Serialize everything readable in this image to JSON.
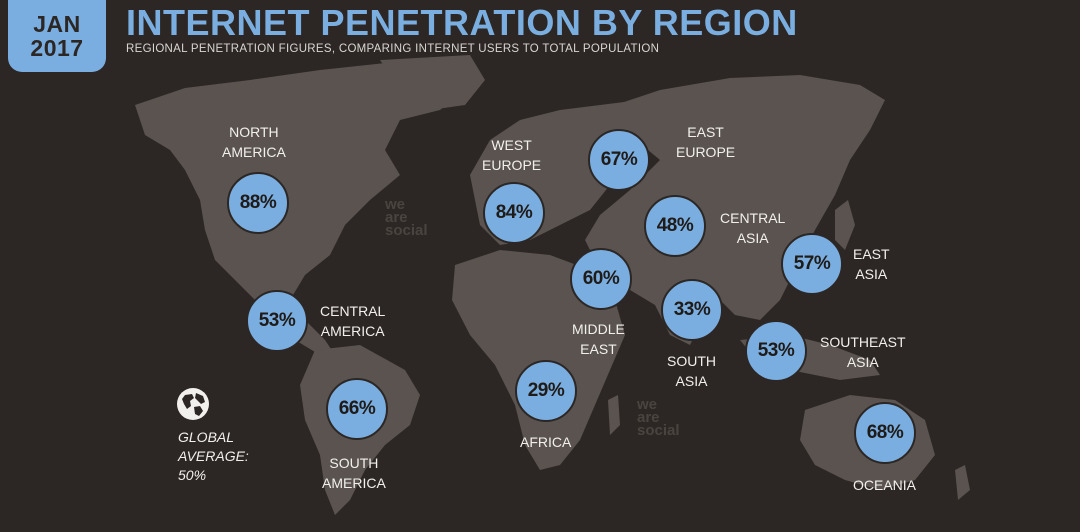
{
  "header": {
    "badge_month": "JAN",
    "badge_year": "2017",
    "title": "INTERNET PENETRATION BY REGION",
    "subtitle": "REGIONAL PENETRATION FIGURES, COMPARING INTERNET USERS TO TOTAL POPULATION"
  },
  "colors": {
    "background": "#2c2724",
    "land": "#5a534f",
    "accent": "#7aaee0"
  },
  "regions": [
    {
      "id": "north-america",
      "label": [
        "NORTH",
        "AMERICA"
      ],
      "value": "88%"
    },
    {
      "id": "central-america",
      "label": [
        "CENTRAL",
        "AMERICA"
      ],
      "value": "53%"
    },
    {
      "id": "south-america",
      "label": [
        "SOUTH",
        "AMERICA"
      ],
      "value": "66%"
    },
    {
      "id": "west-europe",
      "label": [
        "WEST",
        "EUROPE"
      ],
      "value": "84%"
    },
    {
      "id": "east-europe",
      "label": [
        "EAST",
        "EUROPE"
      ],
      "value": "67%"
    },
    {
      "id": "central-asia",
      "label": [
        "CENTRAL",
        "ASIA"
      ],
      "value": "48%"
    },
    {
      "id": "middle-east",
      "label": [
        "MIDDLE",
        "EAST"
      ],
      "value": "60%"
    },
    {
      "id": "south-asia",
      "label": [
        "SOUTH",
        "ASIA"
      ],
      "value": "33%"
    },
    {
      "id": "east-asia",
      "label": [
        "EAST",
        "ASIA"
      ],
      "value": "57%"
    },
    {
      "id": "southeast-asia",
      "label": [
        "SOUTHEAST",
        "ASIA"
      ],
      "value": "53%"
    },
    {
      "id": "africa",
      "label": [
        "AFRICA"
      ],
      "value": "29%"
    },
    {
      "id": "oceania",
      "label": [
        "OCEANIA"
      ],
      "value": "68%"
    }
  ],
  "global_average": {
    "label": [
      "GLOBAL",
      "AVERAGE:"
    ],
    "value": "50%",
    "icon": "globe-icon"
  },
  "watermark": [
    "we",
    "are",
    "social"
  ]
}
